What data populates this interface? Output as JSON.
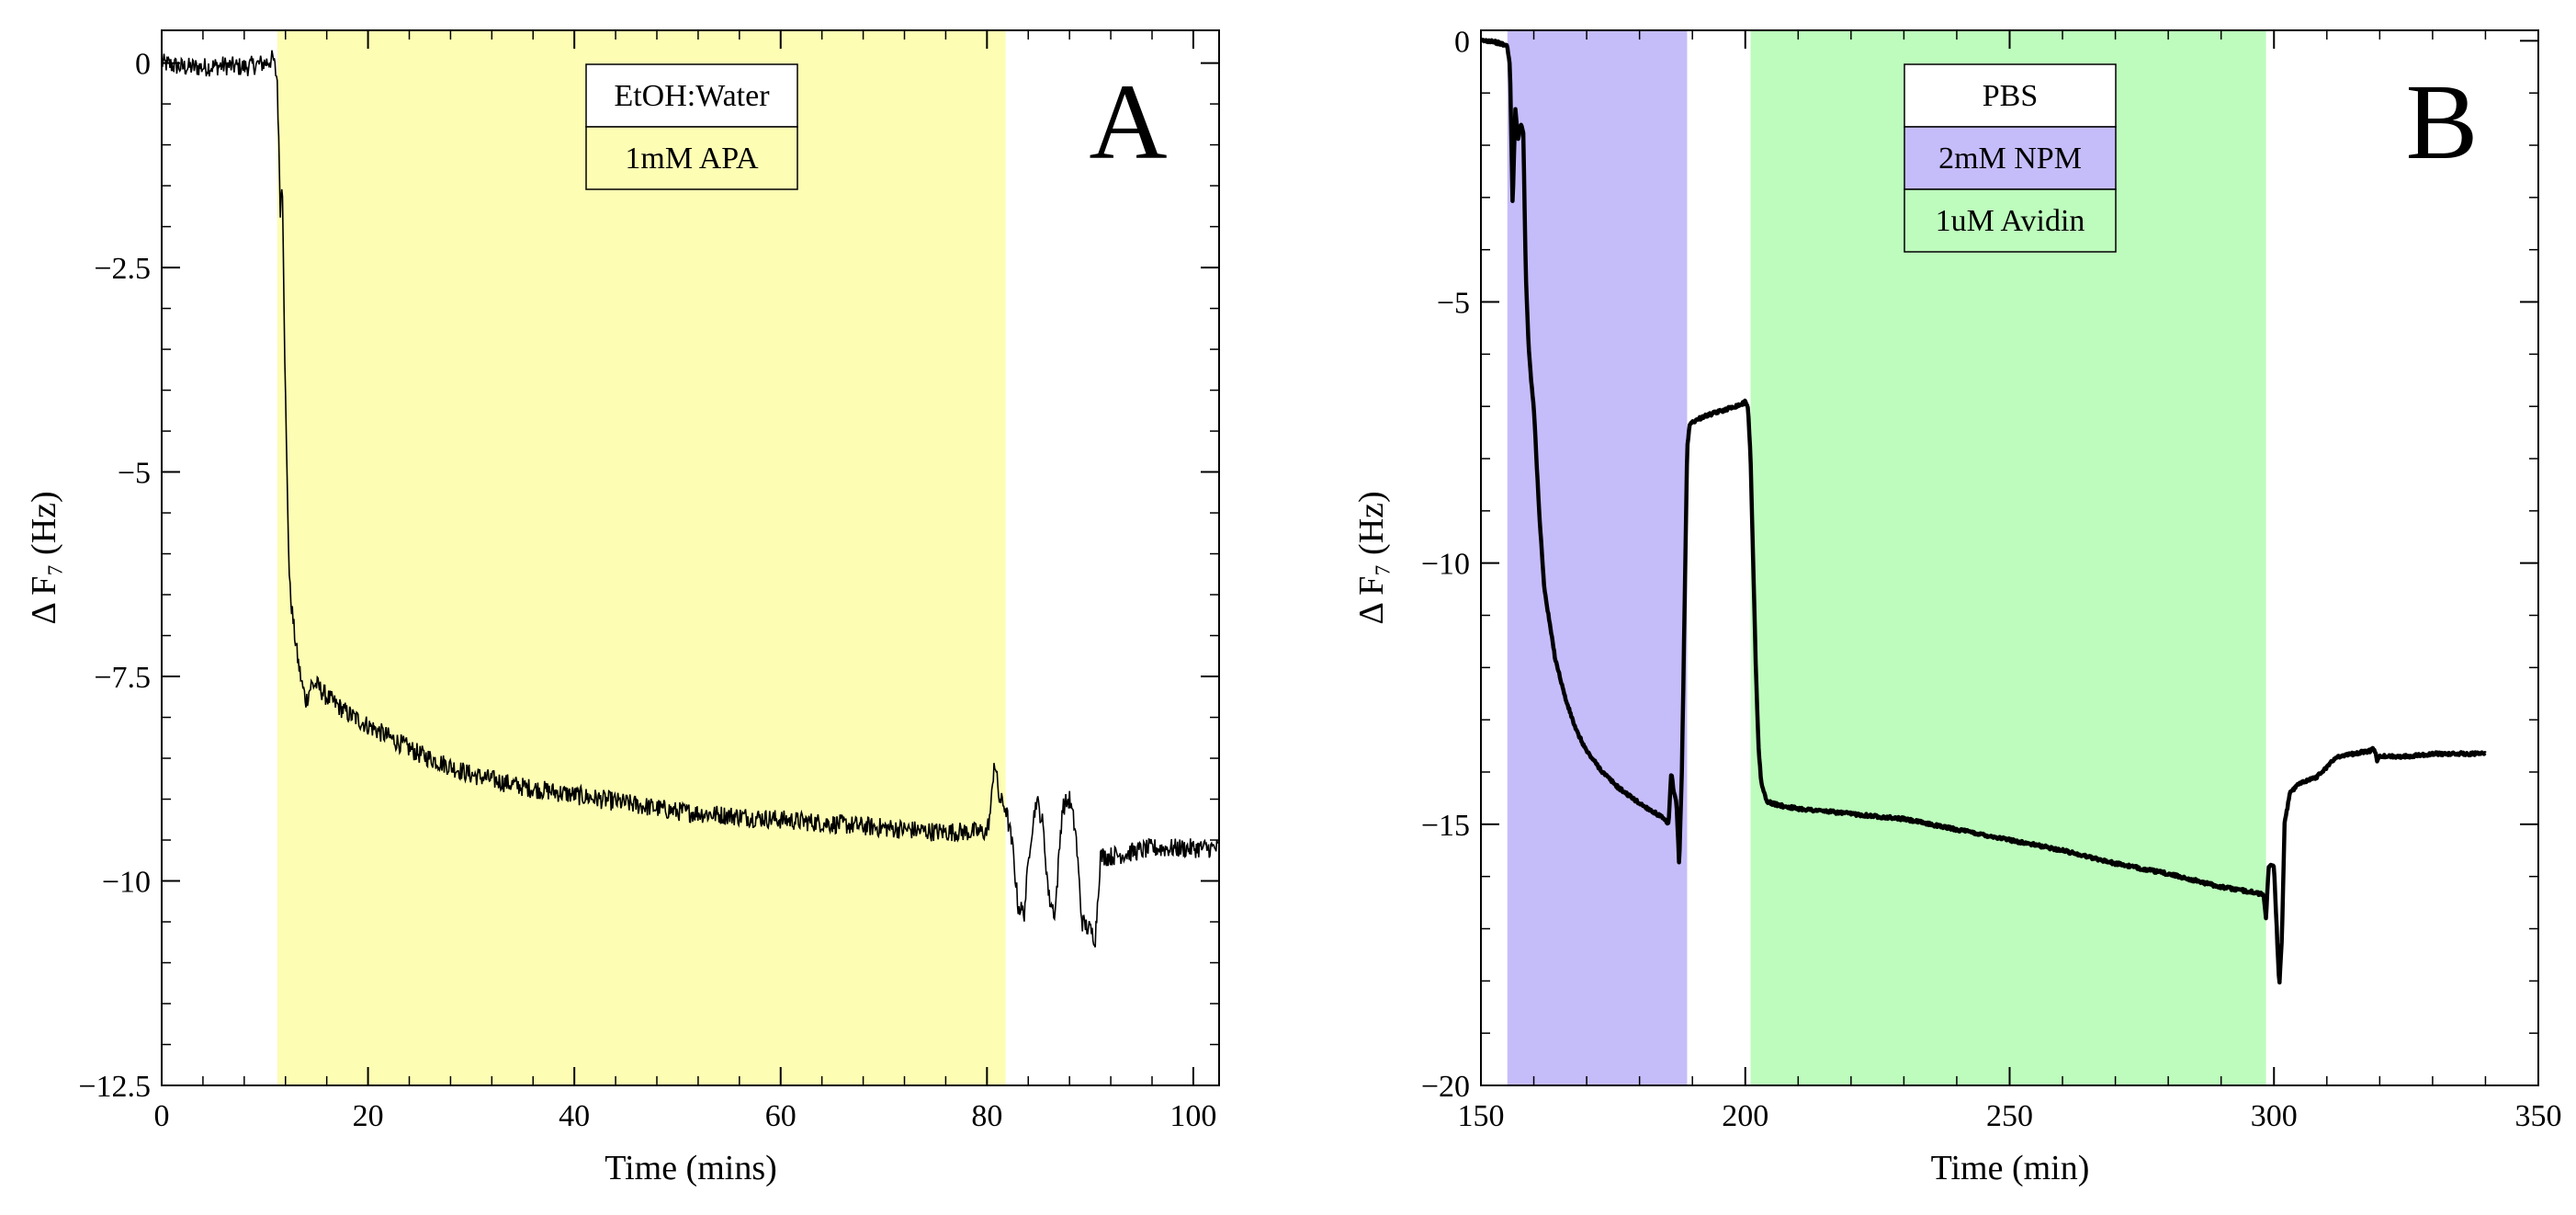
{
  "chart_data": [
    {
      "type": "line",
      "panel_label": "A",
      "xlabel": "Time (mins)",
      "ylabel": "Δ F₇ (Hz)",
      "xlim": [
        0,
        102.5
      ],
      "ylim": [
        -12.5,
        0.4
      ],
      "xticks": [
        0,
        20,
        40,
        60,
        80,
        100
      ],
      "xtick_labels": [
        "0",
        "20",
        "40",
        "60",
        "80",
        "100"
      ],
      "yticks": [
        0,
        -2.5,
        -5,
        -7.5,
        -10,
        -12.5
      ],
      "ytick_labels": [
        "0",
        "−2.5",
        "−5",
        "−7.5",
        "−10",
        "−12.5"
      ],
      "shaded_regions": [
        {
          "x0": 11.2,
          "x1": 81.8,
          "color": "#fdfdb4"
        }
      ],
      "legend": [
        {
          "label": "EtOH:Water",
          "color": "#ffffff"
        },
        {
          "label": "1mM APA",
          "color": "#fdfdb4"
        }
      ],
      "noise": 0.12,
      "series": [
        {
          "name": "ΔF7",
          "x": [
            0,
            2,
            4,
            6,
            8,
            10,
            10.8,
            11.2,
            11.5,
            11.7,
            11.9,
            12.1,
            12.4,
            12.8,
            13.2,
            13.6,
            14.0,
            14.5,
            15,
            16,
            18,
            20,
            25,
            30,
            35,
            40,
            45,
            50,
            55,
            60,
            65,
            70,
            75,
            80,
            80.4,
            80.7,
            81.2,
            81.8,
            82.5,
            83,
            83.6,
            84.2,
            84.8,
            85.4,
            86,
            86.6,
            87.3,
            88,
            88.6,
            89.2,
            90,
            90.5,
            91,
            92,
            94,
            96,
            98,
            100,
            102.5
          ],
          "y": [
            0,
            -0.05,
            -0.05,
            -0.03,
            -0.05,
            0.0,
            0.05,
            -0.2,
            -1.8,
            -1.4,
            -3.3,
            -4.8,
            -6.4,
            -6.9,
            -7.3,
            -7.6,
            -7.8,
            -7.6,
            -7.6,
            -7.75,
            -7.95,
            -8.1,
            -8.45,
            -8.7,
            -8.85,
            -8.95,
            -9.05,
            -9.15,
            -9.2,
            -9.25,
            -9.3,
            -9.35,
            -9.4,
            -9.4,
            -9.1,
            -8.5,
            -9.0,
            -9.1,
            -9.6,
            -10.3,
            -10.4,
            -9.5,
            -9.0,
            -9.3,
            -10.2,
            -10.4,
            -9.1,
            -9.0,
            -9.4,
            -10.5,
            -10.6,
            -10.7,
            -9.7,
            -9.7,
            -9.65,
            -9.6,
            -9.6,
            -9.6,
            -9.6
          ]
        }
      ]
    },
    {
      "type": "line",
      "panel_label": "B",
      "xlabel": "Time (min)",
      "ylabel": "Δ F₇ (Hz)",
      "xlim": [
        150,
        350
      ],
      "ylim": [
        -20,
        0.2
      ],
      "xticks": [
        150,
        200,
        250,
        300,
        350
      ],
      "xtick_labels": [
        "150",
        "200",
        "250",
        "300",
        "350"
      ],
      "yticks": [
        0,
        -5,
        -10,
        -15,
        -20
      ],
      "ytick_labels": [
        "0",
        "−5",
        "−10",
        "−15",
        "−20"
      ],
      "shaded_regions": [
        {
          "x0": 155,
          "x1": 189,
          "color": "#c5bcfa"
        },
        {
          "x0": 201,
          "x1": 298.5,
          "color": "#bdfcbd"
        }
      ],
      "legend": [
        {
          "label": "PBS",
          "color": "#ffffff"
        },
        {
          "label": "2mM NPM",
          "color": "#c5bcfa"
        },
        {
          "label": "1uM Avidin",
          "color": "#bdfcbd"
        }
      ],
      "noise": 0.03,
      "series": [
        {
          "name": "ΔF7",
          "x": [
            150,
            152,
            155,
            155.5,
            156,
            156.5,
            157,
            157.5,
            158,
            158.5,
            159,
            159.5,
            160,
            161,
            162,
            164,
            166,
            168,
            170,
            173,
            176,
            180,
            184,
            185.5,
            186,
            186.5,
            187,
            187.5,
            188,
            188.5,
            189,
            189.5,
            190,
            192,
            195,
            198,
            199.5,
            200,
            200.5,
            201,
            201.5,
            202,
            202.5,
            203,
            204,
            205,
            207,
            210,
            220,
            230,
            240,
            250,
            260,
            270,
            280,
            290,
            296,
            298,
            298.5,
            299,
            300,
            301,
            301.5,
            302,
            303,
            305,
            308,
            310,
            312,
            315,
            318,
            319,
            319.5,
            320,
            322,
            325,
            330,
            335,
            340
          ],
          "y": [
            0,
            0,
            -0.1,
            -0.5,
            -3.2,
            -1.3,
            -1.9,
            -1.6,
            -1.7,
            -4.5,
            -5.8,
            -6.5,
            -7.0,
            -9.0,
            -10.5,
            -11.8,
            -12.6,
            -13.2,
            -13.6,
            -14.0,
            -14.3,
            -14.6,
            -14.85,
            -15.0,
            -14.0,
            -14.4,
            -14.6,
            -15.8,
            -14.0,
            -11.0,
            -7.8,
            -7.35,
            -7.3,
            -7.2,
            -7.1,
            -7.0,
            -6.95,
            -6.9,
            -7.0,
            -8.0,
            -10.0,
            -12.0,
            -13.5,
            -14.2,
            -14.55,
            -14.6,
            -14.65,
            -14.7,
            -14.8,
            -14.9,
            -15.1,
            -15.3,
            -15.5,
            -15.75,
            -15.95,
            -16.2,
            -16.3,
            -16.35,
            -16.8,
            -15.8,
            -15.8,
            -18.1,
            -17.2,
            -15.0,
            -14.4,
            -14.2,
            -14.1,
            -13.9,
            -13.7,
            -13.65,
            -13.6,
            -13.55,
            -13.8,
            -13.7,
            -13.7,
            -13.7,
            -13.65,
            -13.65,
            -13.65
          ]
        }
      ]
    }
  ]
}
